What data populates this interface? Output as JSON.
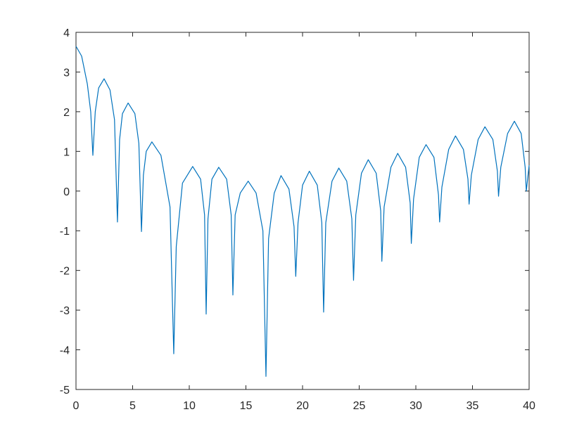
{
  "chart_data": {
    "type": "line",
    "xlim": [
      0,
      40
    ],
    "xticks": [
      0,
      5,
      10,
      15,
      20,
      25,
      30,
      35,
      40
    ],
    "ylim": [
      -5,
      4
    ],
    "yticks": [
      -5,
      -4,
      -3,
      -2,
      -1,
      0,
      1,
      2,
      3,
      4
    ],
    "series": [
      {
        "color": "#0072bd",
        "x": [
          0,
          0.5,
          1.0,
          1.3,
          1.49,
          1.7,
          2.0,
          2.48,
          3.0,
          3.4,
          3.66,
          3.85,
          4.1,
          4.6,
          5.2,
          5.55,
          5.78,
          5.95,
          6.2,
          6.7,
          7.5,
          8.3,
          8.63,
          8.85,
          9.4,
          10.3,
          11.0,
          11.35,
          11.49,
          11.65,
          12.0,
          12.6,
          13.3,
          13.7,
          13.85,
          14.05,
          14.5,
          15.2,
          15.9,
          16.5,
          16.77,
          17.0,
          17.5,
          18.1,
          18.8,
          19.25,
          19.4,
          19.6,
          20.0,
          20.6,
          21.3,
          21.7,
          21.86,
          22.05,
          22.6,
          23.2,
          23.9,
          24.35,
          24.5,
          24.7,
          25.2,
          25.8,
          26.5,
          26.9,
          27.0,
          27.2,
          27.8,
          28.4,
          29.1,
          29.5,
          29.6,
          29.8,
          30.3,
          30.9,
          31.6,
          32.0,
          32.1,
          32.3,
          32.9,
          33.5,
          34.2,
          34.6,
          34.7,
          34.9,
          35.5,
          36.1,
          36.8,
          37.2,
          37.3,
          37.5,
          38.1,
          38.7,
          39.3,
          39.65,
          39.75,
          40
        ],
        "values": [
          3.65,
          3.4,
          2.7,
          2.0,
          0.9,
          2.0,
          2.6,
          2.83,
          2.55,
          1.8,
          -0.78,
          1.3,
          1.95,
          2.22,
          1.95,
          1.2,
          -1.02,
          0.4,
          1.0,
          1.24,
          0.9,
          -0.4,
          -4.1,
          -1.4,
          0.2,
          0.62,
          0.3,
          -0.6,
          -3.1,
          -0.7,
          0.3,
          0.6,
          0.3,
          -0.6,
          -2.62,
          -0.6,
          -0.05,
          0.25,
          -0.05,
          -1.0,
          -4.67,
          -1.2,
          -0.05,
          0.39,
          0.05,
          -0.9,
          -2.15,
          -0.8,
          0.15,
          0.5,
          0.15,
          -0.8,
          -3.05,
          -0.8,
          0.25,
          0.58,
          0.25,
          -0.7,
          -2.25,
          -0.6,
          0.45,
          0.79,
          0.45,
          -0.5,
          -1.77,
          -0.4,
          0.6,
          0.95,
          0.6,
          -0.3,
          -1.32,
          -0.2,
          0.85,
          1.17,
          0.85,
          -0.1,
          -0.78,
          0.1,
          1.05,
          1.39,
          1.05,
          0.3,
          -0.33,
          0.4,
          1.3,
          1.62,
          1.3,
          0.5,
          -0.13,
          0.6,
          1.45,
          1.76,
          1.45,
          0.6,
          0.0,
          0.65
        ]
      }
    ]
  }
}
